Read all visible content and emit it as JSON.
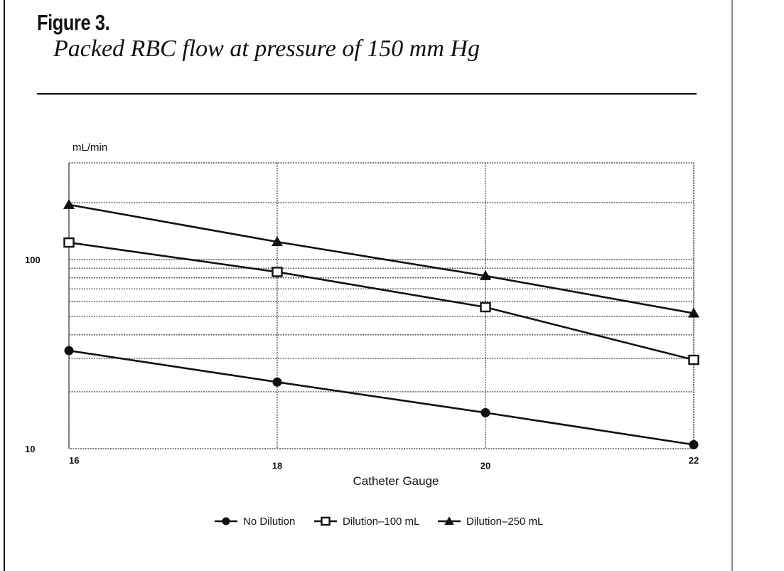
{
  "figure": {
    "label": "Figure 3.",
    "title": "Packed RBC flow at pressure of 150 mm Hg"
  },
  "chart_data": {
    "type": "line",
    "title": "Packed RBC flow at pressure of 150 mm Hg",
    "xlabel": "Catheter Gauge",
    "ylabel": "mL/min",
    "yscale": "log",
    "ylim": [
      10,
      300
    ],
    "x": [
      16,
      18,
      20,
      22
    ],
    "x_tick_labels": [
      "16",
      "18",
      "20",
      "22"
    ],
    "y_tick_labels": [
      "10",
      "100"
    ],
    "grid": true,
    "legend_position": "bottom",
    "series": [
      {
        "name": "No Dilution",
        "marker": "filled-circle",
        "values": [
          33,
          22.5,
          15.5,
          10.5
        ]
      },
      {
        "name": "Dilution–100 mL",
        "marker": "open-square",
        "values": [
          123,
          86,
          56,
          29.5
        ]
      },
      {
        "name": "Dilution–250 mL",
        "marker": "filled-triangle",
        "values": [
          195,
          124,
          82,
          52
        ]
      }
    ]
  },
  "legend": {
    "items": [
      "No Dilution",
      "Dilution–100 mL",
      "Dilution–250 mL"
    ]
  },
  "colors": {
    "line": "#111111",
    "grid": "#333333",
    "text": "#111111"
  }
}
